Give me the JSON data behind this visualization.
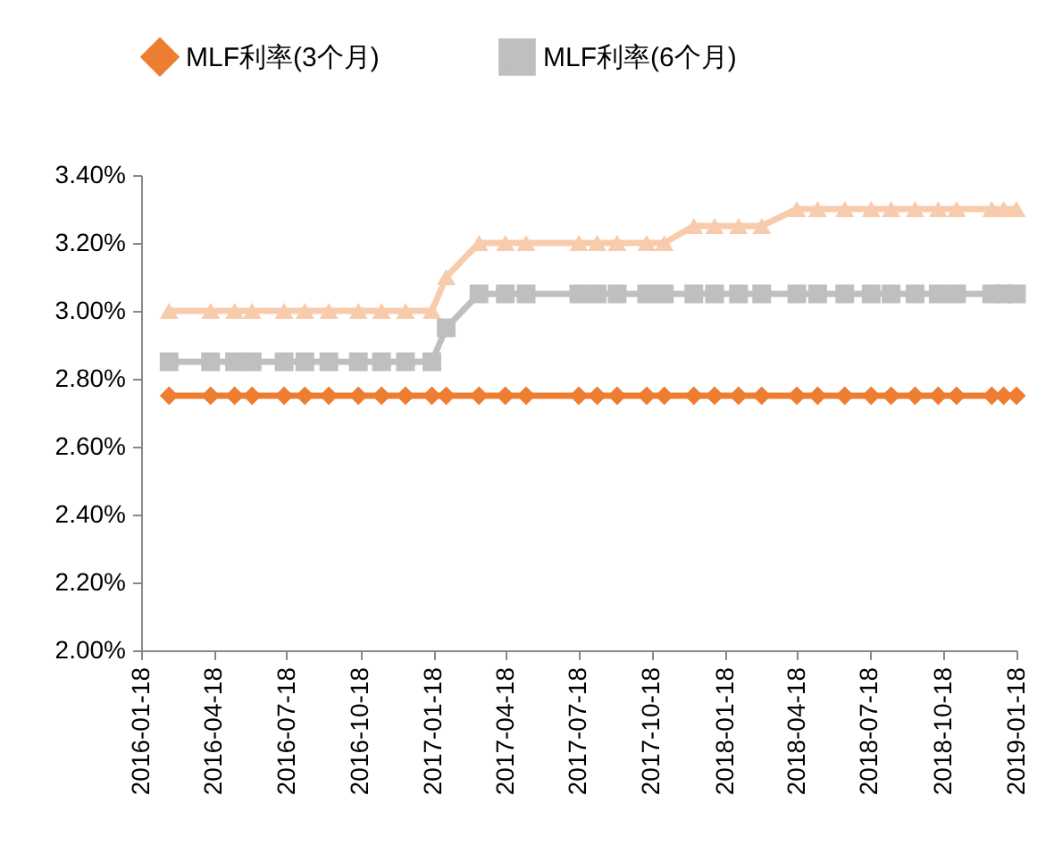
{
  "chart_data": {
    "type": "line",
    "x": [
      "2016-02-22",
      "2016-04-14",
      "2016-05-14",
      "2016-06-05",
      "2016-07-15",
      "2016-08-10",
      "2016-09-09",
      "2016-10-16",
      "2016-11-14",
      "2016-12-14",
      "2017-01-16",
      "2017-02-03",
      "2017-03-16",
      "2017-04-18",
      "2017-05-14",
      "2017-07-19",
      "2017-08-11",
      "2017-09-05",
      "2017-10-12",
      "2017-11-03",
      "2017-12-10",
      "2018-01-05",
      "2018-02-04",
      "2018-03-05",
      "2018-04-18",
      "2018-05-14",
      "2018-06-17",
      "2018-07-20",
      "2018-08-14",
      "2018-09-13",
      "2018-10-12",
      "2018-11-04",
      "2018-12-18",
      "2019-01-02",
      "2019-01-18"
    ],
    "series": [
      {
        "name": "MLF利率(3个月)",
        "color": "#ed7d31",
        "marker": "diamond",
        "values": [
          2.75,
          2.75,
          2.75,
          2.75,
          2.75,
          2.75,
          2.75,
          2.75,
          2.75,
          2.75,
          2.75,
          2.75,
          2.75,
          2.75,
          2.75,
          2.75,
          2.75,
          2.75,
          2.75,
          2.75,
          2.75,
          2.75,
          2.75,
          2.75,
          2.75,
          2.75,
          2.75,
          2.75,
          2.75,
          2.75,
          2.75,
          2.75,
          2.75,
          2.75,
          2.75
        ]
      },
      {
        "name": "MLF利率(6个月)",
        "color": "#bfbfbf",
        "marker": "square",
        "values": [
          2.85,
          2.85,
          2.85,
          2.85,
          2.85,
          2.85,
          2.85,
          2.85,
          2.85,
          2.85,
          2.85,
          2.95,
          3.05,
          3.05,
          3.05,
          3.05,
          3.05,
          3.05,
          3.05,
          3.05,
          3.05,
          3.05,
          3.05,
          3.05,
          3.05,
          3.05,
          3.05,
          3.05,
          3.05,
          3.05,
          3.05,
          3.05,
          3.05,
          3.05,
          3.05
        ]
      },
      {
        "color": "#f8cbad",
        "marker": "triangle",
        "values": [
          3.0,
          3.0,
          3.0,
          3.0,
          3.0,
          3.0,
          3.0,
          3.0,
          3.0,
          3.0,
          3.0,
          3.1,
          3.2,
          3.2,
          3.2,
          3.2,
          3.2,
          3.2,
          3.2,
          3.2,
          3.25,
          3.25,
          3.25,
          3.25,
          3.3,
          3.3,
          3.3,
          3.3,
          3.3,
          3.3,
          3.3,
          3.3,
          3.3,
          3.3,
          3.3
        ]
      }
    ],
    "xlim": [
      "2016-01-18",
      "2019-01-18"
    ],
    "xticks": [
      "2016-01-18",
      "2016-04-18",
      "2016-07-18",
      "2016-10-18",
      "2017-01-18",
      "2017-04-18",
      "2017-07-18",
      "2017-10-18",
      "2018-01-18",
      "2018-04-18",
      "2018-07-18",
      "2018-10-18",
      "2019-01-18"
    ],
    "ylim": [
      2.0,
      3.4
    ],
    "yticks": [
      {
        "value": 2.0,
        "label": "2.00%"
      },
      {
        "value": 2.2,
        "label": "2.20%"
      },
      {
        "value": 2.4,
        "label": "2.40%"
      },
      {
        "value": 2.6,
        "label": "2.60%"
      },
      {
        "value": 2.8,
        "label": "2.80%"
      },
      {
        "value": 3.0,
        "label": "3.00%"
      },
      {
        "value": 3.2,
        "label": "3.20%"
      },
      {
        "value": 3.4,
        "label": "3.40%"
      }
    ],
    "grid": false,
    "legend": "top"
  }
}
